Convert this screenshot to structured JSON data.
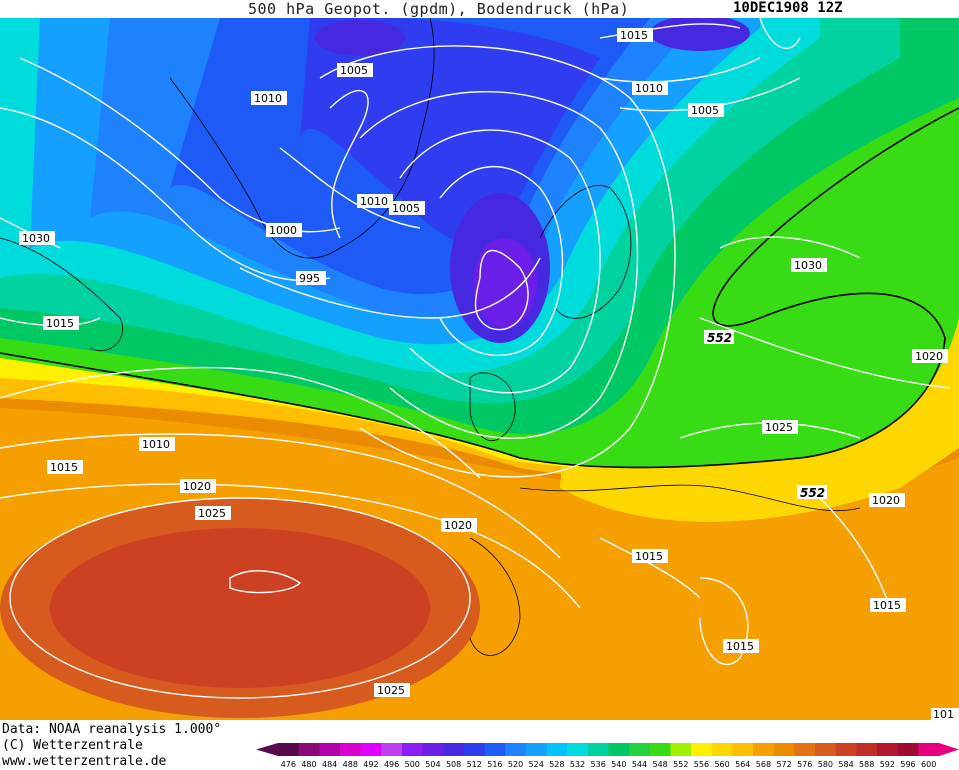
{
  "title": {
    "main": "500 hPa Geopot. (gpdm), Bodendruck (hPa)",
    "date": "10DEC1908 12Z"
  },
  "map": {
    "isobar_labels": [
      "1015",
      "1005",
      "1010",
      "1010",
      "1005",
      "1010",
      "1005",
      "1000",
      "1030",
      "995",
      "1015",
      "1030",
      "552",
      "1020",
      "1010",
      "1015",
      "1025",
      "1020",
      "1025",
      "1020",
      "552",
      "1015",
      "1020",
      "1015",
      "1025",
      "101"
    ],
    "geopotential_contour_label": "552"
  },
  "footer": {
    "line1": "Data: NOAA reanalysis 1.000°",
    "line2": "(C) Wetterzentrale",
    "line3": "www.wetterzentrale.de"
  },
  "legend": {
    "ticks": [
      "476",
      "480",
      "484",
      "488",
      "492",
      "496",
      "500",
      "504",
      "508",
      "512",
      "516",
      "520",
      "524",
      "528",
      "532",
      "536",
      "540",
      "544",
      "548",
      "552",
      "556",
      "560",
      "564",
      "568",
      "572",
      "576",
      "580",
      "584",
      "588",
      "592",
      "596",
      "600"
    ],
    "colors": [
      "#5a0a4a",
      "#8a0a7a",
      "#b400a8",
      "#d800d0",
      "#e000ff",
      "#c040f0",
      "#8c1ef5",
      "#6a1ee8",
      "#4628e0",
      "#2f3cf0",
      "#1e5af5",
      "#1e82ff",
      "#14a0ff",
      "#00c3ff",
      "#00dcdc",
      "#00d2a0",
      "#00c864",
      "#22d23c",
      "#38dc14",
      "#a0f000",
      "#fff000",
      "#ffd700",
      "#ffbe00",
      "#f5a000",
      "#eb8c00",
      "#e17314",
      "#d75a1e",
      "#cd4123",
      "#c32d28",
      "#b4142d",
      "#a00a32",
      "#e6007e"
    ]
  }
}
